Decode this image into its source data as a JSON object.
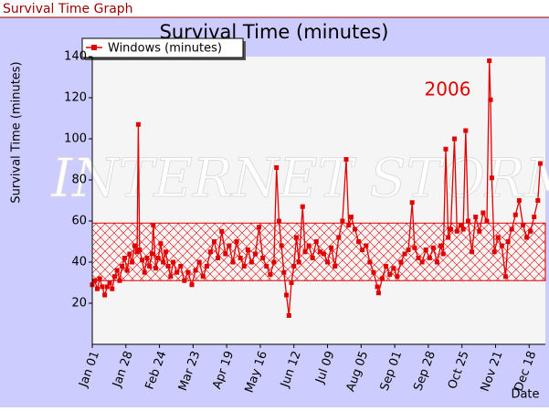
{
  "header": {
    "title": "Survival Time Graph"
  },
  "chart_data": {
    "type": "line",
    "title": "Survival Time (minutes)",
    "y_label": "Survival Time (minutes)",
    "x_label": "Date",
    "annotation": "2006",
    "watermark": "INTERNET STORM",
    "series": [
      {
        "name": "Windows (minutes)",
        "color": "#e00000",
        "x": [
          "2006-01-01",
          "2006-01-03",
          "2006-01-05",
          "2006-01-07",
          "2006-01-09",
          "2006-01-11",
          "2006-01-13",
          "2006-01-15",
          "2006-01-17",
          "2006-01-19",
          "2006-01-21",
          "2006-01-23",
          "2006-01-25",
          "2006-01-27",
          "2006-01-29",
          "2006-01-31",
          "2006-02-02",
          "2006-02-04",
          "2006-02-06",
          "2006-02-07",
          "2006-02-08",
          "2006-02-10",
          "2006-02-12",
          "2006-02-14",
          "2006-02-16",
          "2006-02-18",
          "2006-02-19",
          "2006-02-21",
          "2006-02-23",
          "2006-02-25",
          "2006-02-27",
          "2006-03-01",
          "2006-03-03",
          "2006-03-05",
          "2006-03-07",
          "2006-03-10",
          "2006-03-13",
          "2006-03-16",
          "2006-03-19",
          "2006-03-22",
          "2006-03-25",
          "2006-03-28",
          "2006-03-31",
          "2006-04-03",
          "2006-04-06",
          "2006-04-09",
          "2006-04-12",
          "2006-04-15",
          "2006-04-18",
          "2006-04-21",
          "2006-04-24",
          "2006-04-27",
          "2006-04-30",
          "2006-05-03",
          "2006-05-06",
          "2006-05-09",
          "2006-05-12",
          "2006-05-15",
          "2006-05-18",
          "2006-05-21",
          "2006-05-24",
          "2006-05-27",
          "2006-05-29",
          "2006-05-31",
          "2006-06-02",
          "2006-06-04",
          "2006-06-06",
          "2006-06-08",
          "2006-06-10",
          "2006-06-12",
          "2006-06-14",
          "2006-06-16",
          "2006-06-19",
          "2006-06-21",
          "2006-06-24",
          "2006-06-27",
          "2006-06-30",
          "2006-07-03",
          "2006-07-06",
          "2006-07-09",
          "2006-07-12",
          "2006-07-15",
          "2006-07-18",
          "2006-07-21",
          "2006-07-24",
          "2006-07-26",
          "2006-07-28",
          "2006-07-31",
          "2006-08-03",
          "2006-08-06",
          "2006-08-09",
          "2006-08-12",
          "2006-08-15",
          "2006-08-18",
          "2006-08-19",
          "2006-08-22",
          "2006-08-25",
          "2006-08-28",
          "2006-08-31",
          "2006-09-03",
          "2006-09-06",
          "2006-09-09",
          "2006-09-12",
          "2006-09-15",
          "2006-09-17",
          "2006-09-20",
          "2006-09-23",
          "2006-09-26",
          "2006-09-29",
          "2006-10-02",
          "2006-10-05",
          "2006-10-08",
          "2006-10-10",
          "2006-10-12",
          "2006-10-14",
          "2006-10-16",
          "2006-10-19",
          "2006-10-21",
          "2006-10-24",
          "2006-10-26",
          "2006-10-28",
          "2006-10-30",
          "2006-11-02",
          "2006-11-05",
          "2006-11-08",
          "2006-11-11",
          "2006-11-14",
          "2006-11-16",
          "2006-11-17",
          "2006-11-18",
          "2006-11-20",
          "2006-11-23",
          "2006-11-26",
          "2006-11-29",
          "2006-12-01",
          "2006-12-04",
          "2006-12-07",
          "2006-12-10",
          "2006-12-13",
          "2006-12-16",
          "2006-12-19",
          "2006-12-22",
          "2006-12-25",
          "2006-12-27"
        ],
        "values": [
          29,
          31,
          27,
          32,
          28,
          24,
          28,
          30,
          27,
          33,
          36,
          31,
          38,
          42,
          36,
          44,
          40,
          48,
          45,
          107,
          46,
          41,
          35,
          42,
          38,
          44,
          58,
          37,
          42,
          49,
          40,
          45,
          38,
          33,
          40,
          35,
          38,
          31,
          35,
          29,
          36,
          40,
          33,
          38,
          45,
          50,
          42,
          55,
          44,
          48,
          40,
          50,
          42,
          38,
          46,
          40,
          44,
          57,
          42,
          38,
          34,
          40,
          86,
          60,
          48,
          35,
          24,
          14,
          30,
          38,
          52,
          40,
          67,
          45,
          48,
          42,
          50,
          45,
          44,
          40,
          47,
          38,
          52,
          60,
          90,
          58,
          62,
          56,
          50,
          46,
          48,
          40,
          35,
          28,
          25,
          32,
          38,
          34,
          37,
          33,
          40,
          44,
          46,
          69,
          47,
          42,
          40,
          46,
          42,
          47,
          40,
          48,
          44,
          95,
          52,
          56,
          100,
          55,
          58,
          56,
          104,
          60,
          45,
          62,
          55,
          64,
          60,
          138,
          119,
          81,
          45,
          52,
          48,
          33,
          50,
          56,
          63,
          70,
          58,
          52,
          55,
          62,
          70,
          88
        ]
      }
    ],
    "band": {
      "low": 31,
      "high": 59,
      "color": "#e00000"
    },
    "xlim": [
      "2006-01-01",
      "2006-12-31"
    ],
    "xticks": [
      {
        "value": "2006-01-01",
        "label": "Jan 01"
      },
      {
        "value": "2006-01-28",
        "label": "Jan 28"
      },
      {
        "value": "2006-02-24",
        "label": "Feb 24"
      },
      {
        "value": "2006-03-23",
        "label": "Mar 23"
      },
      {
        "value": "2006-04-19",
        "label": "Apr 19"
      },
      {
        "value": "2006-05-16",
        "label": "May 16"
      },
      {
        "value": "2006-06-12",
        "label": "Jun 12"
      },
      {
        "value": "2006-07-09",
        "label": "Jul 09"
      },
      {
        "value": "2006-08-05",
        "label": "Aug 05"
      },
      {
        "value": "2006-09-01",
        "label": "Sep 01"
      },
      {
        "value": "2006-09-28",
        "label": "Sep 28"
      },
      {
        "value": "2006-10-25",
        "label": "Oct 25"
      },
      {
        "value": "2006-11-21",
        "label": "Nov 21"
      },
      {
        "value": "2006-12-18",
        "label": "Dec 18"
      }
    ],
    "ylim": [
      0,
      140
    ],
    "yticks": [
      20,
      40,
      60,
      80,
      100,
      120,
      140
    ],
    "legend": "top-left"
  }
}
